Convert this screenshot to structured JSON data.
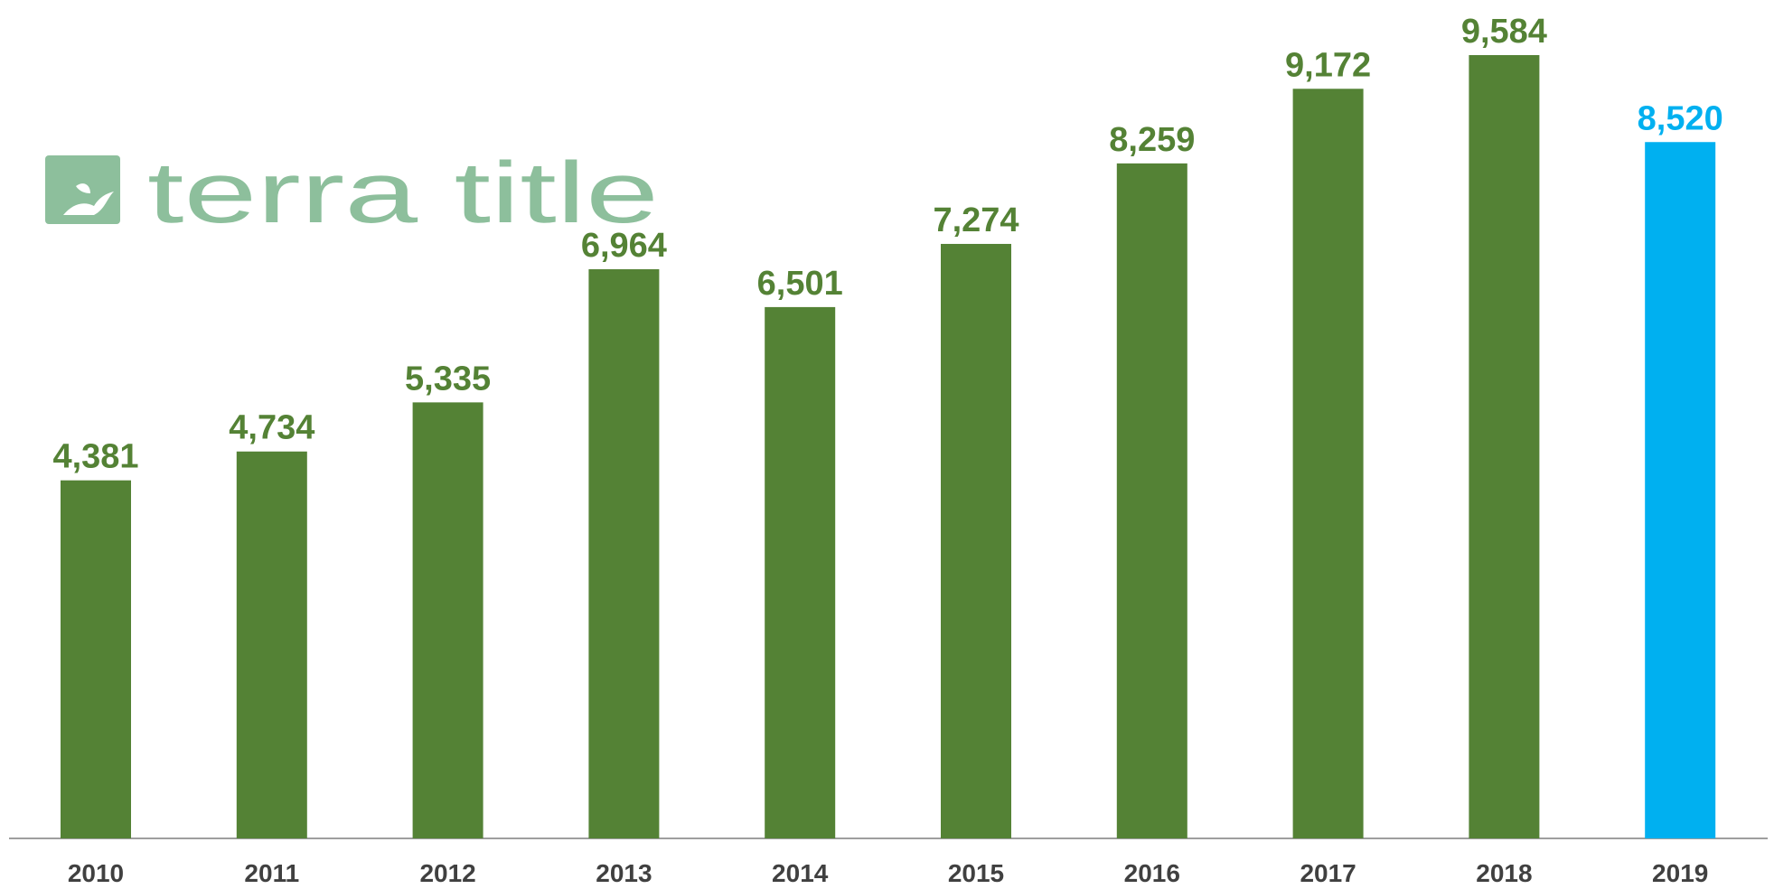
{
  "logo_text": "terra title",
  "chart_data": {
    "type": "bar",
    "categories": [
      "2010",
      "2011",
      "2012",
      "2013",
      "2014",
      "2015",
      "2016",
      "2017",
      "2018",
      "2019"
    ],
    "values": [
      4381,
      4734,
      5335,
      6964,
      6501,
      7274,
      8259,
      9172,
      9584,
      8520
    ],
    "value_labels": [
      "4,381",
      "4,734",
      "5,335",
      "6,964",
      "6,501",
      "7,274",
      "8,259",
      "9,172",
      "9,584",
      "8,520"
    ],
    "colors": [
      "#548235",
      "#548235",
      "#548235",
      "#548235",
      "#548235",
      "#548235",
      "#548235",
      "#548235",
      "#548235",
      "#00b0f0"
    ]
  }
}
